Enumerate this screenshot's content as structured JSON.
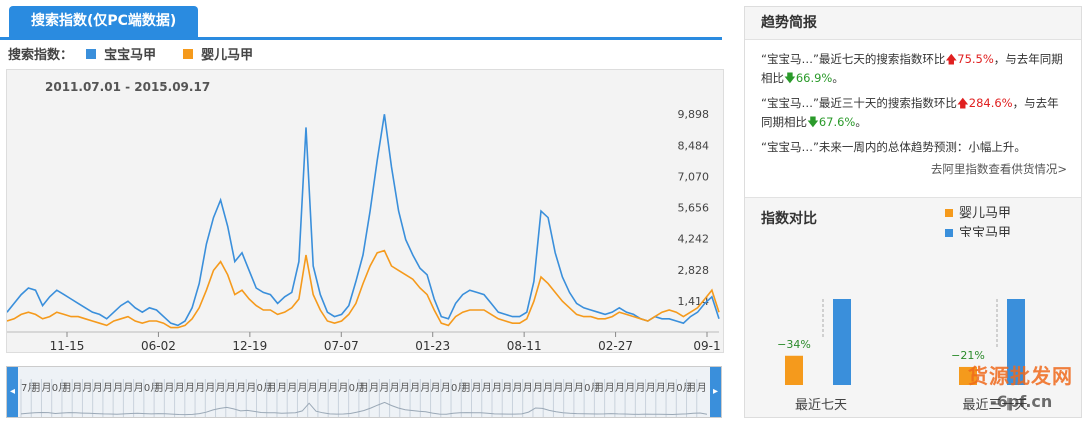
{
  "tab": {
    "label": "搜索指数(仅PC端数据)"
  },
  "legend": {
    "prefix": "搜索指数：",
    "series": [
      {
        "name": "宝宝马甲",
        "color": "#3a8fdb"
      },
      {
        "name": "婴儿马甲",
        "color": "#f59a1c"
      }
    ]
  },
  "chart_data": {
    "type": "line",
    "title": "",
    "date_range": "2011.07.01 - 2015.09.17",
    "x_ticks": [
      "11-15",
      "06-02",
      "12-19",
      "07-07",
      "01-23",
      "08-11",
      "02-27",
      "09-1"
    ],
    "y_ticks": [
      1414,
      2828,
      4242,
      5656,
      7070,
      8484,
      9898
    ],
    "y_tick_labels": [
      "1,414",
      "2,828",
      "4,242",
      "5,656",
      "7,070",
      "8,484",
      "9,898"
    ],
    "ylim": [
      0,
      11000
    ],
    "grid": false,
    "x_index_range": [
      0,
      100
    ],
    "series": [
      {
        "name": "宝宝马甲",
        "color": "#3a8fdb",
        "points": [
          [
            0,
            900
          ],
          [
            1,
            1300
          ],
          [
            2,
            1700
          ],
          [
            3,
            2000
          ],
          [
            4,
            1900
          ],
          [
            5,
            1200
          ],
          [
            6,
            1600
          ],
          [
            7,
            1900
          ],
          [
            8,
            1700
          ],
          [
            9,
            1500
          ],
          [
            10,
            1300
          ],
          [
            11,
            1100
          ],
          [
            12,
            900
          ],
          [
            13,
            800
          ],
          [
            14,
            600
          ],
          [
            15,
            900
          ],
          [
            16,
            1200
          ],
          [
            17,
            1400
          ],
          [
            18,
            1100
          ],
          [
            19,
            900
          ],
          [
            20,
            1100
          ],
          [
            21,
            1000
          ],
          [
            22,
            700
          ],
          [
            23,
            400
          ],
          [
            24,
            300
          ],
          [
            25,
            500
          ],
          [
            26,
            1100
          ],
          [
            27,
            2200
          ],
          [
            28,
            4000
          ],
          [
            29,
            5200
          ],
          [
            30,
            6000
          ],
          [
            31,
            4800
          ],
          [
            32,
            3200
          ],
          [
            33,
            3600
          ],
          [
            34,
            2800
          ],
          [
            35,
            2000
          ],
          [
            36,
            1800
          ],
          [
            37,
            1700
          ],
          [
            38,
            1300
          ],
          [
            39,
            1600
          ],
          [
            40,
            1800
          ],
          [
            41,
            3200
          ],
          [
            42,
            9300
          ],
          [
            43,
            3000
          ],
          [
            44,
            1700
          ],
          [
            45,
            900
          ],
          [
            46,
            700
          ],
          [
            47,
            800
          ],
          [
            48,
            1200
          ],
          [
            49,
            2300
          ],
          [
            50,
            3500
          ],
          [
            51,
            5500
          ],
          [
            52,
            7800
          ],
          [
            53,
            9900
          ],
          [
            54,
            7500
          ],
          [
            55,
            5500
          ],
          [
            56,
            4200
          ],
          [
            57,
            3500
          ],
          [
            58,
            2900
          ],
          [
            59,
            2600
          ],
          [
            60,
            1500
          ],
          [
            61,
            700
          ],
          [
            62,
            600
          ],
          [
            63,
            1300
          ],
          [
            64,
            1700
          ],
          [
            65,
            1900
          ],
          [
            66,
            1800
          ],
          [
            67,
            1700
          ],
          [
            68,
            1300
          ],
          [
            69,
            900
          ],
          [
            70,
            800
          ],
          [
            71,
            700
          ],
          [
            72,
            700
          ],
          [
            73,
            900
          ],
          [
            74,
            2300
          ],
          [
            75,
            5500
          ],
          [
            76,
            5200
          ],
          [
            77,
            3600
          ],
          [
            78,
            2500
          ],
          [
            79,
            1800
          ],
          [
            80,
            1300
          ],
          [
            81,
            1100
          ],
          [
            82,
            1000
          ],
          [
            83,
            900
          ],
          [
            84,
            800
          ],
          [
            85,
            900
          ],
          [
            86,
            1100
          ],
          [
            87,
            900
          ],
          [
            88,
            800
          ],
          [
            89,
            600
          ],
          [
            90,
            500
          ],
          [
            91,
            700
          ],
          [
            92,
            600
          ],
          [
            93,
            600
          ],
          [
            94,
            500
          ],
          [
            95,
            400
          ],
          [
            96,
            700
          ],
          [
            97,
            900
          ],
          [
            98,
            1300
          ],
          [
            99,
            1600
          ],
          [
            100,
            600
          ]
        ]
      },
      {
        "name": "婴儿马甲",
        "color": "#f59a1c",
        "points": [
          [
            0,
            500
          ],
          [
            1,
            600
          ],
          [
            2,
            800
          ],
          [
            3,
            900
          ],
          [
            4,
            800
          ],
          [
            5,
            600
          ],
          [
            6,
            700
          ],
          [
            7,
            900
          ],
          [
            8,
            800
          ],
          [
            9,
            700
          ],
          [
            10,
            700
          ],
          [
            11,
            600
          ],
          [
            12,
            500
          ],
          [
            13,
            400
          ],
          [
            14,
            300
          ],
          [
            15,
            500
          ],
          [
            16,
            600
          ],
          [
            17,
            700
          ],
          [
            18,
            500
          ],
          [
            19,
            400
          ],
          [
            20,
            500
          ],
          [
            21,
            500
          ],
          [
            22,
            400
          ],
          [
            23,
            200
          ],
          [
            24,
            200
          ],
          [
            25,
            300
          ],
          [
            26,
            600
          ],
          [
            27,
            1100
          ],
          [
            28,
            1900
          ],
          [
            29,
            2800
          ],
          [
            30,
            3200
          ],
          [
            31,
            2600
          ],
          [
            32,
            1700
          ],
          [
            33,
            1900
          ],
          [
            34,
            1500
          ],
          [
            35,
            1200
          ],
          [
            36,
            1000
          ],
          [
            37,
            1000
          ],
          [
            38,
            800
          ],
          [
            39,
            900
          ],
          [
            40,
            1100
          ],
          [
            41,
            1500
          ],
          [
            42,
            3500
          ],
          [
            43,
            1700
          ],
          [
            44,
            1000
          ],
          [
            45,
            500
          ],
          [
            46,
            400
          ],
          [
            47,
            500
          ],
          [
            48,
            800
          ],
          [
            49,
            1300
          ],
          [
            50,
            2200
          ],
          [
            51,
            3000
          ],
          [
            52,
            3600
          ],
          [
            53,
            3700
          ],
          [
            54,
            3000
          ],
          [
            55,
            2800
          ],
          [
            56,
            2600
          ],
          [
            57,
            2400
          ],
          [
            58,
            2000
          ],
          [
            59,
            1700
          ],
          [
            60,
            1000
          ],
          [
            61,
            400
          ],
          [
            62,
            300
          ],
          [
            63,
            700
          ],
          [
            64,
            900
          ],
          [
            65,
            1000
          ],
          [
            66,
            1000
          ],
          [
            67,
            1000
          ],
          [
            68,
            800
          ],
          [
            69,
            600
          ],
          [
            70,
            500
          ],
          [
            71,
            400
          ],
          [
            72,
            400
          ],
          [
            73,
            600
          ],
          [
            74,
            1400
          ],
          [
            75,
            2500
          ],
          [
            76,
            2200
          ],
          [
            77,
            1800
          ],
          [
            78,
            1400
          ],
          [
            79,
            1100
          ],
          [
            80,
            800
          ],
          [
            81,
            700
          ],
          [
            82,
            700
          ],
          [
            83,
            600
          ],
          [
            84,
            600
          ],
          [
            85,
            700
          ],
          [
            86,
            900
          ],
          [
            87,
            800
          ],
          [
            88,
            700
          ],
          [
            89,
            600
          ],
          [
            90,
            500
          ],
          [
            91,
            700
          ],
          [
            92,
            900
          ],
          [
            93,
            1000
          ],
          [
            94,
            900
          ],
          [
            95,
            700
          ],
          [
            96,
            900
          ],
          [
            97,
            1100
          ],
          [
            98,
            1500
          ],
          [
            99,
            1900
          ],
          [
            100,
            900
          ]
        ]
      }
    ]
  },
  "navigator": {
    "month_labels": [
      "7月",
      "月",
      "月",
      "0月",
      "月",
      "月",
      "月",
      "月",
      "月",
      "月",
      "月",
      "月",
      "0月",
      "月",
      "月",
      "月",
      "月",
      "月",
      "月",
      "月",
      "月",
      "月",
      "月",
      "0月",
      "月",
      "月",
      "月",
      "月",
      "月",
      "月",
      "月",
      "月",
      "0月",
      "月",
      "月",
      "月",
      "月",
      "月",
      "月",
      "月",
      "月",
      "月",
      "0月",
      "月",
      "月",
      "月",
      "月",
      "月",
      "月",
      "月",
      "月",
      "月",
      "月",
      "月",
      "月",
      "0月",
      "月",
      "月",
      "月",
      "月",
      "月",
      "月",
      "月",
      "月",
      "0月",
      "月",
      "月"
    ]
  },
  "trend_brief": {
    "title": "趋势简报",
    "items": [
      {
        "prefix": "“宝宝马…”最近七天的搜索指数环比",
        "v1": "75.5%",
        "mid": "，与去年同期相比",
        "v2": "66.9%",
        "suffix": "。"
      },
      {
        "prefix": "“宝宝马…”最近三十天的搜索指数环比",
        "v1": "284.6%",
        "mid": "，与去年同期相比",
        "v2": "67.6%",
        "suffix": "。"
      }
    ],
    "forecast": "“宝宝马…”未来一周内的总体趋势预测：小幅上升。",
    "link": "去阿里指数查看供货情况>"
  },
  "compare": {
    "title": "指数对比",
    "legend": [
      {
        "name": "婴儿马甲",
        "color": "#f59a1c"
      },
      {
        "name": "宝宝马甲",
        "color": "#3a8fdb"
      }
    ],
    "groups": [
      {
        "label": "最近七天",
        "pct_label": "−34%",
        "orange_ratio": 0.34
      },
      {
        "label": "最近三十天",
        "pct_label": "−21%",
        "orange_ratio": 0.21
      }
    ]
  },
  "watermark": {
    "line1": "货源批发网",
    "line2": "-6pf.cn"
  }
}
